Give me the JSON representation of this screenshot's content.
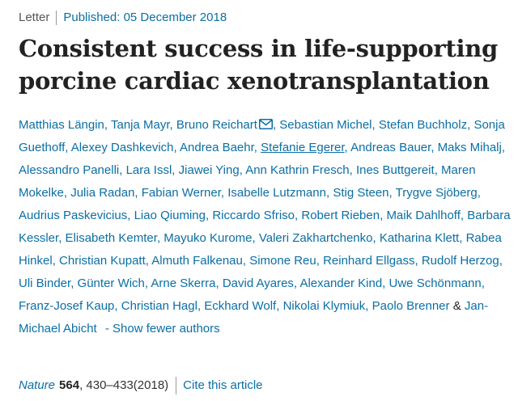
{
  "meta": {
    "article_type": "Letter",
    "published_label": "Published: 05 December 2018"
  },
  "title_lines": [
    "Consistent success in life-supporting",
    "porcine cardiac xenotransplantation"
  ],
  "authors": [
    {
      "name": "Matthias Längin"
    },
    {
      "name": "Tanja Mayr"
    },
    {
      "name": "Bruno Reichart",
      "corresponding": true
    },
    {
      "name": "Sebastian Michel"
    },
    {
      "name": "Stefan Buchholz"
    },
    {
      "name": "Sonja Guethoff"
    },
    {
      "name": "Alexey Dashkevich"
    },
    {
      "name": "Andrea Baehr"
    },
    {
      "name": "Stefanie Egerer",
      "underlined": true
    },
    {
      "name": "Andreas Bauer"
    },
    {
      "name": "Maks Mihalj"
    },
    {
      "name": "Alessandro Panelli"
    },
    {
      "name": "Lara Issl"
    },
    {
      "name": "Jiawei Ying"
    },
    {
      "name": "Ann Kathrin Fresch"
    },
    {
      "name": "Ines Buttgereit"
    },
    {
      "name": "Maren Mokelke"
    },
    {
      "name": "Julia Radan"
    },
    {
      "name": "Fabian Werner"
    },
    {
      "name": "Isabelle Lutzmann"
    },
    {
      "name": "Stig Steen"
    },
    {
      "name": "Trygve Sjöberg"
    },
    {
      "name": "Audrius Paskevicius"
    },
    {
      "name": "Liao Qiuming"
    },
    {
      "name": "Riccardo Sfriso"
    },
    {
      "name": "Robert Rieben"
    },
    {
      "name": "Maik Dahlhoff"
    },
    {
      "name": "Barbara Kessler"
    },
    {
      "name": "Elisabeth Kemter"
    },
    {
      "name": "Mayuko Kurome"
    },
    {
      "name": "Valeri Zakhartchenko"
    },
    {
      "name": "Katharina Klett"
    },
    {
      "name": "Rabea Hinkel"
    },
    {
      "name": "Christian Kupatt"
    },
    {
      "name": "Almuth Falkenau"
    },
    {
      "name": "Simone Reu"
    },
    {
      "name": "Reinhard Ellgass"
    },
    {
      "name": "Rudolf Herzog"
    },
    {
      "name": "Uli Binder"
    },
    {
      "name": "Günter Wich"
    },
    {
      "name": "Arne Skerra"
    },
    {
      "name": "David Ayares"
    },
    {
      "name": "Alexander Kind"
    },
    {
      "name": "Uwe Schönmann"
    },
    {
      "name": "Franz-Josef Kaup"
    },
    {
      "name": "Christian Hagl"
    },
    {
      "name": "Eckhard Wolf"
    },
    {
      "name": "Nikolai Klymiuk"
    },
    {
      "name": "Paolo Brenner"
    },
    {
      "name": "Jan-Michael Abicht"
    }
  ],
  "amp": "&",
  "show_fewer_label": "- Show fewer authors",
  "citation": {
    "journal": "Nature",
    "volume": "564",
    "pages_year": ", 430–433(2018)",
    "cite_label": "Cite this article"
  },
  "icons": {
    "corresponding_author": "mail-icon"
  },
  "colors": {
    "link": "#0b6fa4",
    "text": "#222222"
  }
}
